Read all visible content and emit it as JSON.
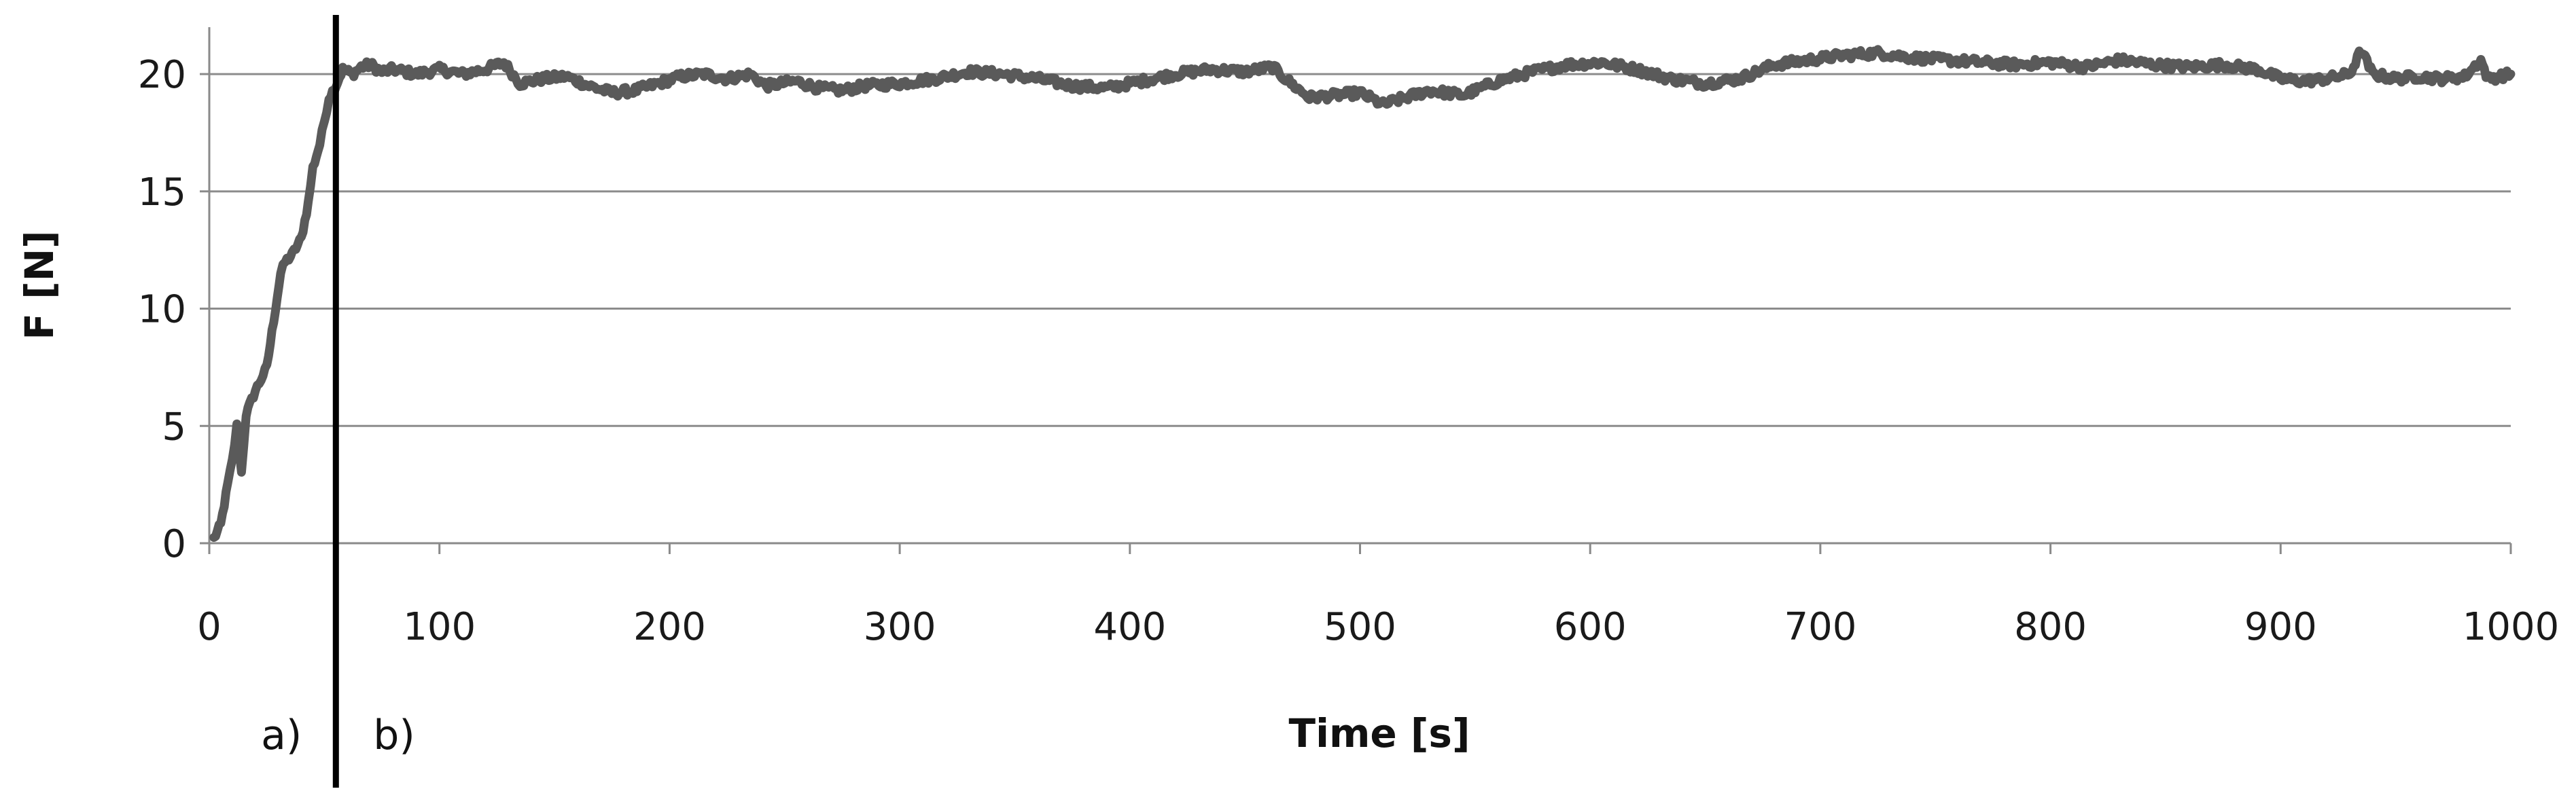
{
  "chart_data": {
    "type": "line",
    "title": "",
    "xlabel": "Time [s]",
    "ylabel": "F  [N]",
    "xlim": [
      0,
      1000
    ],
    "ylim": [
      0,
      22
    ],
    "x_ticks": [
      "0",
      "100",
      "200",
      "300",
      "400",
      "500",
      "600",
      "700",
      "800",
      "900",
      "1000"
    ],
    "y_ticks": [
      "0",
      "5",
      "10",
      "15",
      "20"
    ],
    "grid": "horizontal",
    "legend": "none",
    "series_color": "#5a5a5a",
    "series": [
      {
        "x": [
          2,
          5,
          8,
          10,
          12,
          14,
          16,
          20,
          25,
          28,
          31,
          33,
          36,
          40,
          43,
          45,
          48,
          50,
          52,
          55,
          58,
          62,
          66,
          70,
          75,
          80,
          90,
          100,
          110,
          120,
          128,
          135,
          145,
          155,
          165,
          175,
          185,
          195,
          205,
          215,
          225,
          235,
          242,
          255,
          265,
          275,
          285,
          300,
          315,
          330,
          345,
          360,
          375,
          390,
          405,
          420,
          435,
          450,
          462,
          470,
          478,
          490,
          500,
          510,
          520,
          530,
          545,
          560,
          575,
          590,
          605,
          620,
          635,
          650,
          665,
          680,
          695,
          710,
          725,
          740,
          755,
          770,
          785,
          800,
          815,
          830,
          845,
          860,
          875,
          890,
          900,
          910,
          920,
          930,
          935,
          940,
          950,
          960,
          970,
          980,
          987,
          990,
          995,
          1000
        ],
        "y": [
          0.2,
          0.8,
          2.5,
          3.5,
          5.0,
          3.0,
          5.5,
          6.5,
          7.5,
          9.5,
          11.5,
          12.0,
          12.3,
          13.0,
          14.5,
          16.0,
          17.0,
          18.0,
          19.0,
          19.5,
          20.2,
          20.0,
          20.3,
          20.4,
          20.1,
          20.2,
          20.0,
          20.2,
          20.0,
          20.2,
          20.5,
          19.6,
          19.8,
          19.9,
          19.5,
          19.2,
          19.3,
          19.6,
          19.9,
          20.0,
          19.8,
          20.0,
          19.5,
          19.7,
          19.4,
          19.3,
          19.5,
          19.6,
          19.8,
          20.1,
          20.0,
          19.8,
          19.5,
          19.4,
          19.7,
          20.0,
          20.2,
          20.1,
          20.3,
          19.6,
          19.0,
          19.1,
          19.2,
          18.7,
          19.0,
          19.3,
          19.1,
          19.7,
          20.1,
          20.4,
          20.5,
          20.2,
          19.8,
          19.6,
          19.8,
          20.4,
          20.6,
          20.8,
          20.9,
          20.7,
          20.6,
          20.5,
          20.4,
          20.5,
          20.3,
          20.6,
          20.4,
          20.3,
          20.4,
          20.2,
          19.8,
          19.7,
          19.8,
          20.0,
          21.0,
          20.0,
          19.8,
          19.9,
          19.8,
          19.9,
          20.6,
          19.8,
          19.9,
          20.0
        ]
      }
    ],
    "divider_x": 55,
    "phase_labels": [
      "a)",
      "b)"
    ]
  }
}
